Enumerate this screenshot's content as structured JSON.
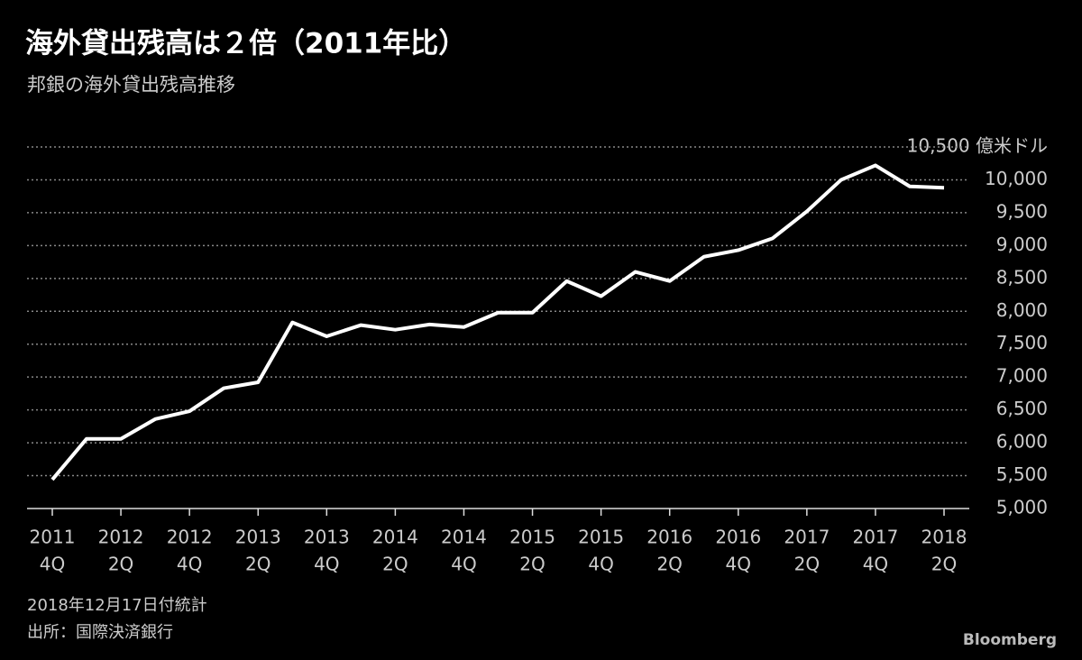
{
  "chart_data": {
    "type": "line",
    "title": "海外貸出残高は２倍（2011年比）",
    "subtitle": "邦銀の海外貸出残高推移",
    "categories": [
      [
        "2011",
        "4Q"
      ],
      null,
      [
        "2012",
        "2Q"
      ],
      null,
      [
        "2012",
        "4Q"
      ],
      null,
      [
        "2013",
        "2Q"
      ],
      null,
      [
        "2013",
        "4Q"
      ],
      null,
      [
        "2014",
        "2Q"
      ],
      null,
      [
        "2014",
        "4Q"
      ],
      null,
      [
        "2015",
        "2Q"
      ],
      null,
      [
        "2015",
        "4Q"
      ],
      null,
      [
        "2016",
        "2Q"
      ],
      null,
      [
        "2016",
        "4Q"
      ],
      null,
      [
        "2017",
        "2Q"
      ],
      null,
      [
        "2017",
        "4Q"
      ],
      null,
      [
        "2018",
        "2Q"
      ]
    ],
    "series": [
      {
        "color": "#ffffff",
        "values": [
          5440,
          6060,
          6060,
          6360,
          6480,
          6830,
          6920,
          7830,
          7620,
          7790,
          7720,
          7800,
          7760,
          7980,
          7980,
          8460,
          8230,
          8600,
          8460,
          8830,
          8930,
          9110,
          9520,
          10000,
          10220,
          9900,
          9880
        ]
      }
    ],
    "ylim": [
      5000,
      10500
    ],
    "yticks": [
      {
        "value": 5000,
        "label": "5,000"
      },
      {
        "value": 5500,
        "label": "5,500"
      },
      {
        "value": 6000,
        "label": "6,000"
      },
      {
        "value": 6500,
        "label": "6,500"
      },
      {
        "value": 7000,
        "label": "7,000"
      },
      {
        "value": 7500,
        "label": "7,500"
      },
      {
        "value": 8000,
        "label": "8,000"
      },
      {
        "value": 8500,
        "label": "8,500"
      },
      {
        "value": 9000,
        "label": "9,000"
      },
      {
        "value": 9500,
        "label": "9,500"
      },
      {
        "value": 10000,
        "label": "10,000"
      },
      {
        "value": 10500,
        "label": "10,500 億米ドル"
      }
    ],
    "grid": true,
    "notes": [
      "2018年12月17日付統計",
      "出所：国際決済銀行"
    ],
    "source": "Bloomberg"
  }
}
